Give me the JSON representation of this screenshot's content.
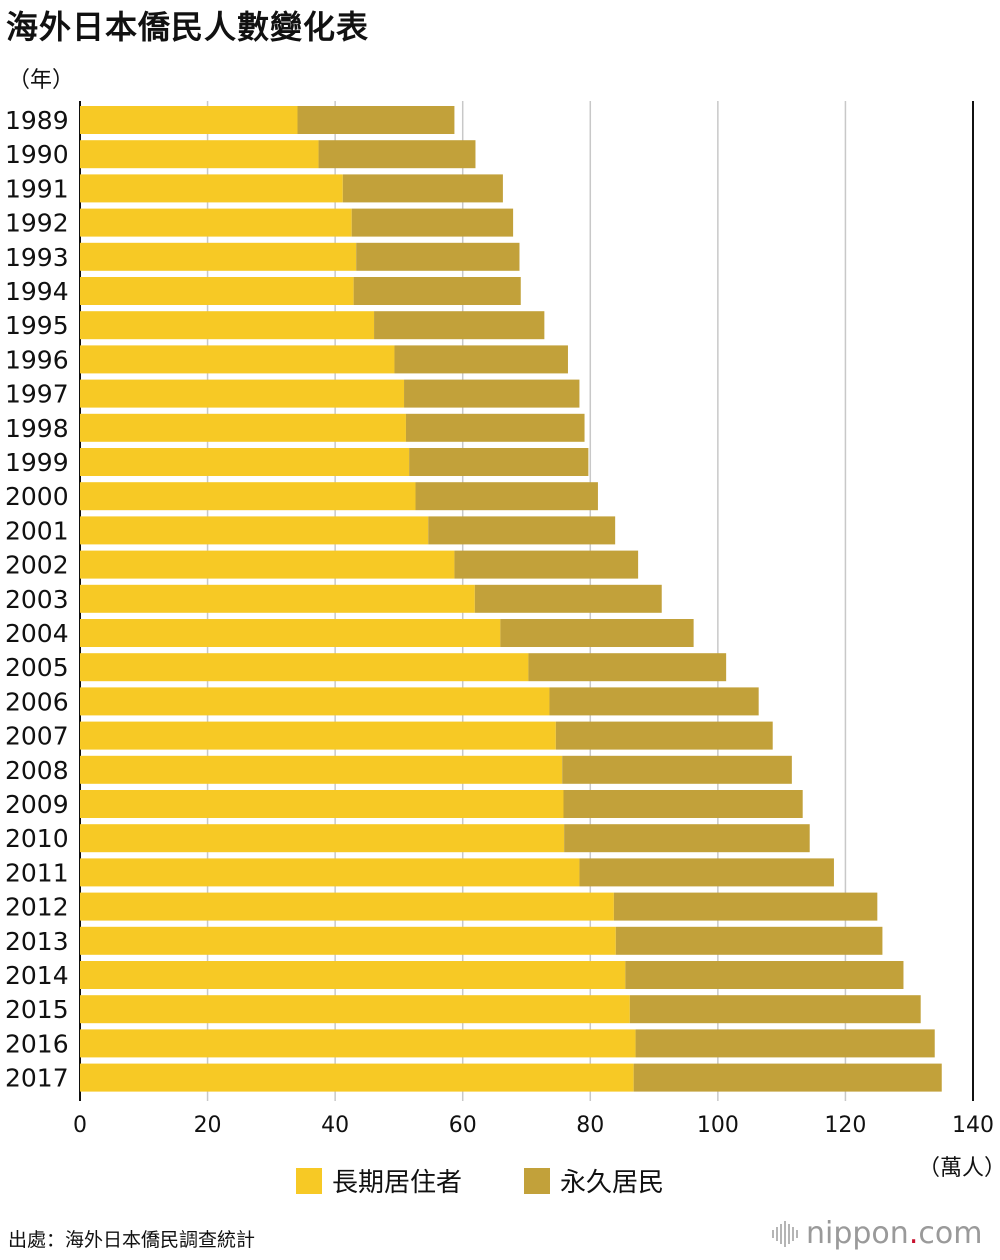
{
  "header": {
    "title": "海外日本僑民人數變化表",
    "year_unit": "（年）",
    "value_unit": "（萬人）"
  },
  "legend": {
    "long_term_label": "長期居住者",
    "permanent_label": "永久居民"
  },
  "footer": {
    "source": "出處：海外日本僑民調查統計",
    "logo_text": "nippon",
    "logo_dot": ".",
    "logo_tld": "com"
  },
  "colors": {
    "long_term": "#F7C925",
    "permanent": "#C2A13A",
    "grid": "#C8C8C8",
    "axis": "#111111"
  },
  "chart_data": {
    "type": "bar",
    "orientation": "horizontal",
    "stacked": true,
    "title": "海外日本僑民人數變化表",
    "xlabel": "（萬人）",
    "ylabel": "（年）",
    "xlim": [
      0,
      140
    ],
    "xticks": [
      0,
      20,
      40,
      60,
      80,
      100,
      120,
      140
    ],
    "grid": true,
    "legend_position": "bottom",
    "categories": [
      "1989",
      "1990",
      "1991",
      "1992",
      "1993",
      "1994",
      "1995",
      "1996",
      "1997",
      "1998",
      "1999",
      "2000",
      "2001",
      "2002",
      "2003",
      "2004",
      "2005",
      "2006",
      "2007",
      "2008",
      "2009",
      "2010",
      "2011",
      "2012",
      "2013",
      "2014",
      "2015",
      "2016",
      "2017"
    ],
    "series": [
      {
        "name": "長期居住者",
        "values": [
          34.1,
          37.4,
          41.2,
          42.6,
          43.3,
          42.9,
          46.1,
          49.3,
          50.8,
          51.1,
          51.6,
          52.6,
          54.6,
          58.7,
          61.9,
          65.9,
          70.3,
          73.6,
          74.6,
          75.6,
          75.8,
          75.9,
          78.3,
          83.7,
          84.0,
          85.5,
          86.2,
          87.1,
          86.8
        ]
      },
      {
        "name": "永久居民",
        "values": [
          24.6,
          24.6,
          25.1,
          25.3,
          25.6,
          26.2,
          26.7,
          27.2,
          27.5,
          28.0,
          28.1,
          28.6,
          29.3,
          28.8,
          29.3,
          30.3,
          31.0,
          32.8,
          34.0,
          36.0,
          37.5,
          38.5,
          39.9,
          41.3,
          41.8,
          43.6,
          45.6,
          46.9,
          48.3
        ]
      }
    ]
  }
}
